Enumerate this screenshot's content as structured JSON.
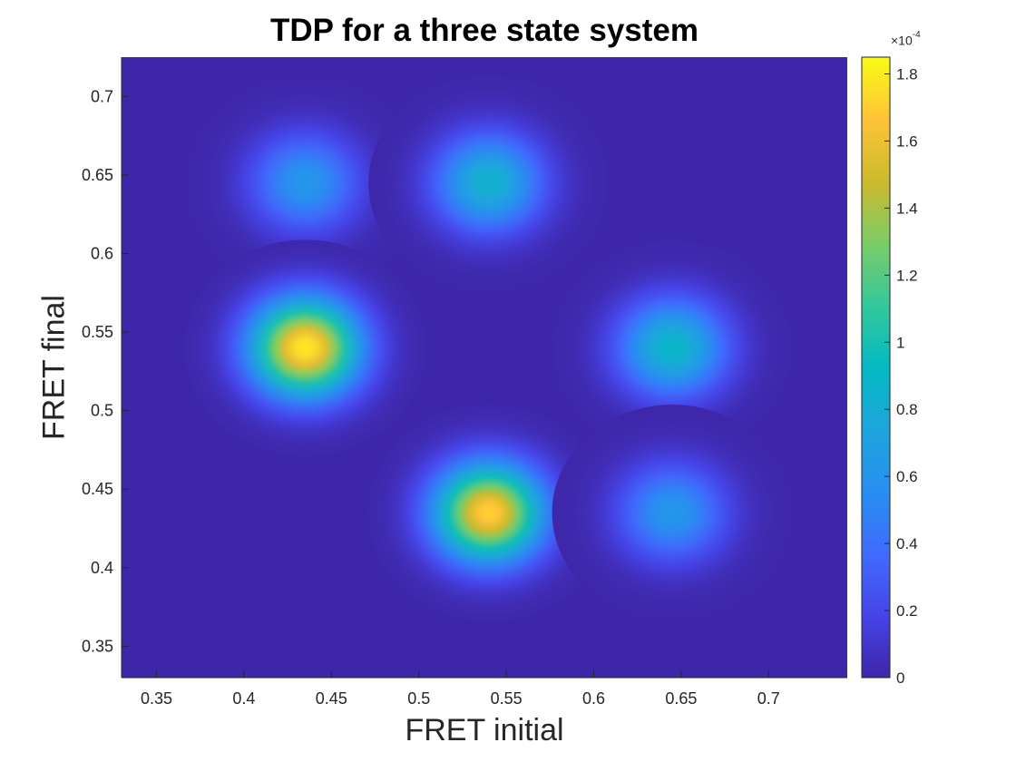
{
  "chart_data": {
    "type": "heatmap",
    "title": "TDP for a three state system",
    "xlabel": "FRET initial",
    "ylabel": "FRET final",
    "xlim": [
      0.33,
      0.745
    ],
    "ylim": [
      0.33,
      0.725
    ],
    "xticks": [
      "0.35",
      "0.4",
      "0.45",
      "0.5",
      "0.55",
      "0.6",
      "0.65",
      "0.7"
    ],
    "yticks": [
      "0.35",
      "0.4",
      "0.45",
      "0.5",
      "0.55",
      "0.6",
      "0.65",
      "0.7"
    ],
    "colorbar": {
      "range": [
        0,
        1.85
      ],
      "ticks": [
        "0",
        "0.2",
        "0.4",
        "0.6",
        "0.8",
        "1",
        "1.2",
        "1.4",
        "1.6",
        "1.8"
      ],
      "exponent_base": "×10",
      "exponent_power": "-4"
    },
    "peaks": [
      {
        "x": 0.435,
        "y": 0.645,
        "peak": 0.62
      },
      {
        "x": 0.54,
        "y": 0.645,
        "peak": 0.85
      },
      {
        "x": 0.435,
        "y": 0.54,
        "peak": 1.8
      },
      {
        "x": 0.645,
        "y": 0.54,
        "peak": 0.9
      },
      {
        "x": 0.54,
        "y": 0.435,
        "peak": 1.72
      },
      {
        "x": 0.645,
        "y": 0.435,
        "peak": 0.62
      }
    ],
    "colormap": "parula"
  }
}
